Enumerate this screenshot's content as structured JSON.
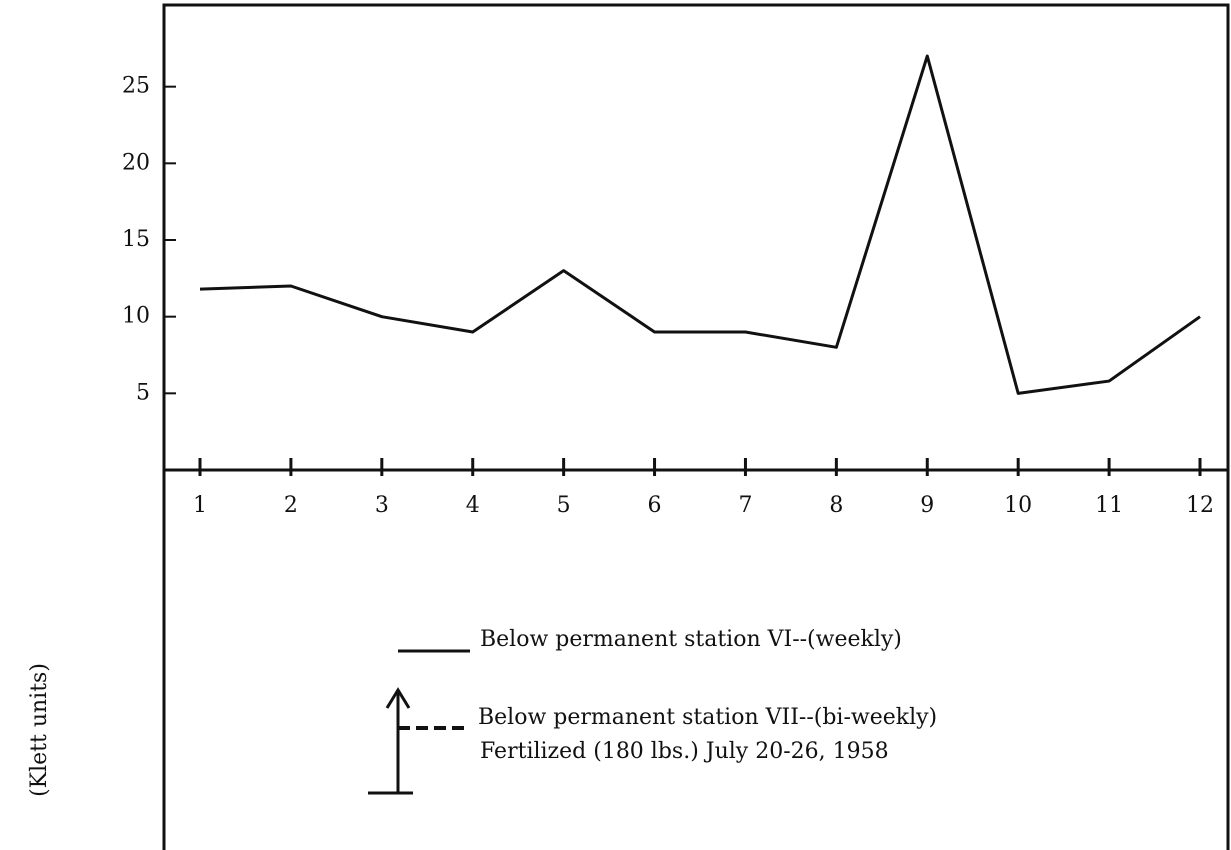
{
  "chart_data": {
    "type": "line",
    "y_label": "(Klett units)",
    "x": [
      1,
      2,
      3,
      4,
      5,
      6,
      7,
      8,
      9,
      10,
      11,
      12
    ],
    "series": [
      {
        "name": "Below permanent station VI--(weekly)",
        "color": "#111111",
        "dash": false,
        "values": [
          11.8,
          12,
          10,
          9,
          13,
          9,
          9,
          8,
          27,
          5,
          5.8,
          10
        ]
      },
      {
        "name": "Below permanent station VII--(bi-weekly)",
        "color": "#111111",
        "dash": true,
        "values": [
          null,
          null,
          null,
          null,
          null,
          null,
          null,
          null,
          null,
          null,
          null,
          null
        ]
      }
    ],
    "annotations": [
      "Fertilized (180 lbs.) July 20-26, 1958"
    ],
    "xlim": [
      1,
      12
    ],
    "xticks": [
      1,
      2,
      3,
      4,
      5,
      6,
      7,
      8,
      9,
      10,
      11,
      12
    ],
    "ylim": [
      0,
      30
    ],
    "yticks": [
      5,
      10,
      15,
      20,
      25
    ]
  }
}
